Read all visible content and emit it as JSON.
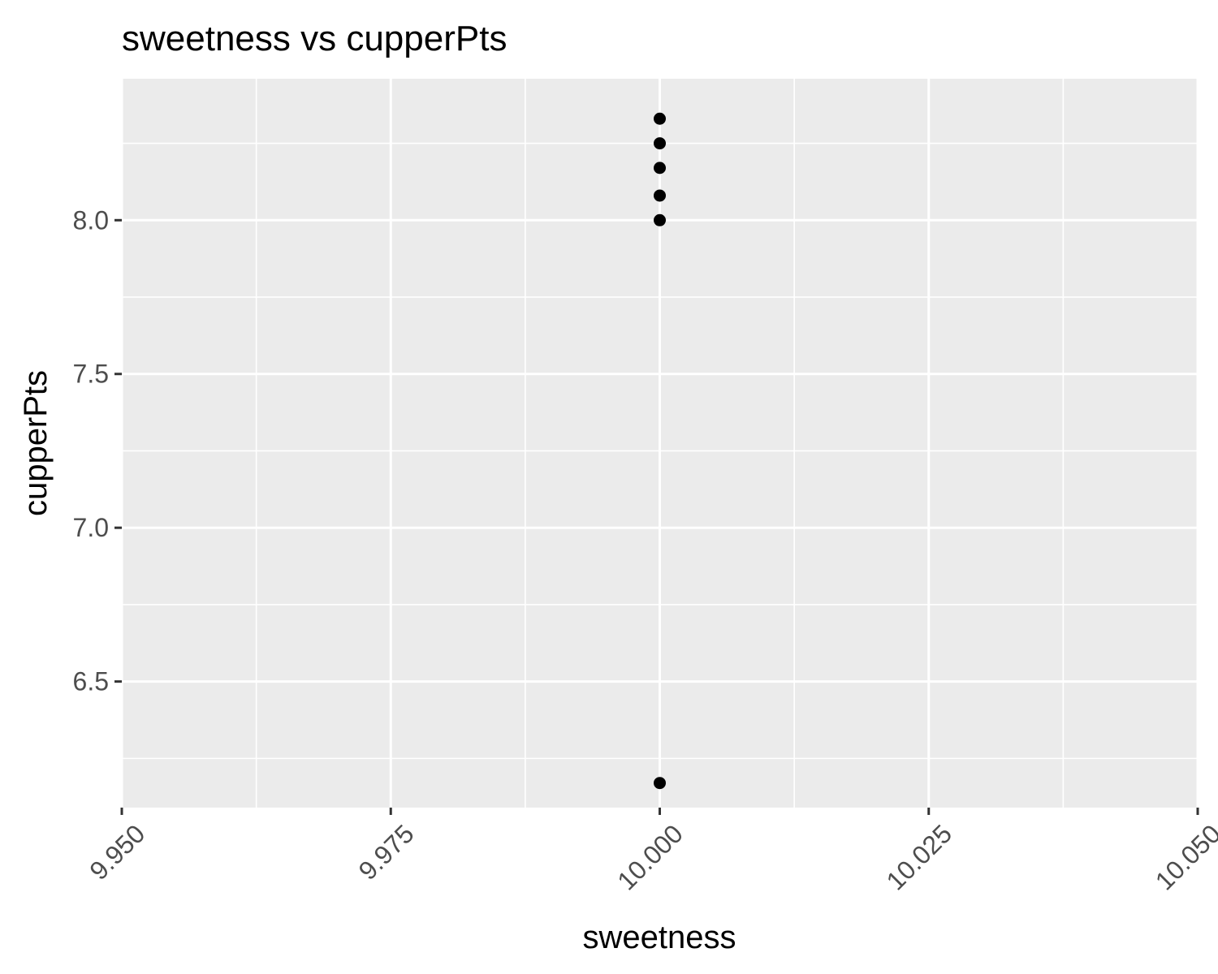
{
  "chart_data": {
    "type": "scatter",
    "title": "sweetness vs cupperPts",
    "xlabel": "sweetness",
    "ylabel": "cupperPts",
    "xlim": [
      9.95,
      10.05
    ],
    "ylim": [
      6.09,
      8.46
    ],
    "x_ticks": [
      9.95,
      9.975,
      10.0,
      10.025,
      10.05
    ],
    "x_tick_labels": [
      "9.950",
      "9.975",
      "10.000",
      "10.025",
      "10.050"
    ],
    "y_ticks": [
      6.5,
      7.0,
      7.5,
      8.0
    ],
    "y_tick_labels": [
      "6.5",
      "7.0",
      "7.5",
      "8.0"
    ],
    "grid": true,
    "panel_color": "#ebebeb",
    "point_color": "#000000",
    "points": [
      {
        "x": 10.0,
        "y": 8.33
      },
      {
        "x": 10.0,
        "y": 8.25
      },
      {
        "x": 10.0,
        "y": 8.17
      },
      {
        "x": 10.0,
        "y": 8.08
      },
      {
        "x": 10.0,
        "y": 8.0
      },
      {
        "x": 10.0,
        "y": 6.17
      }
    ]
  }
}
